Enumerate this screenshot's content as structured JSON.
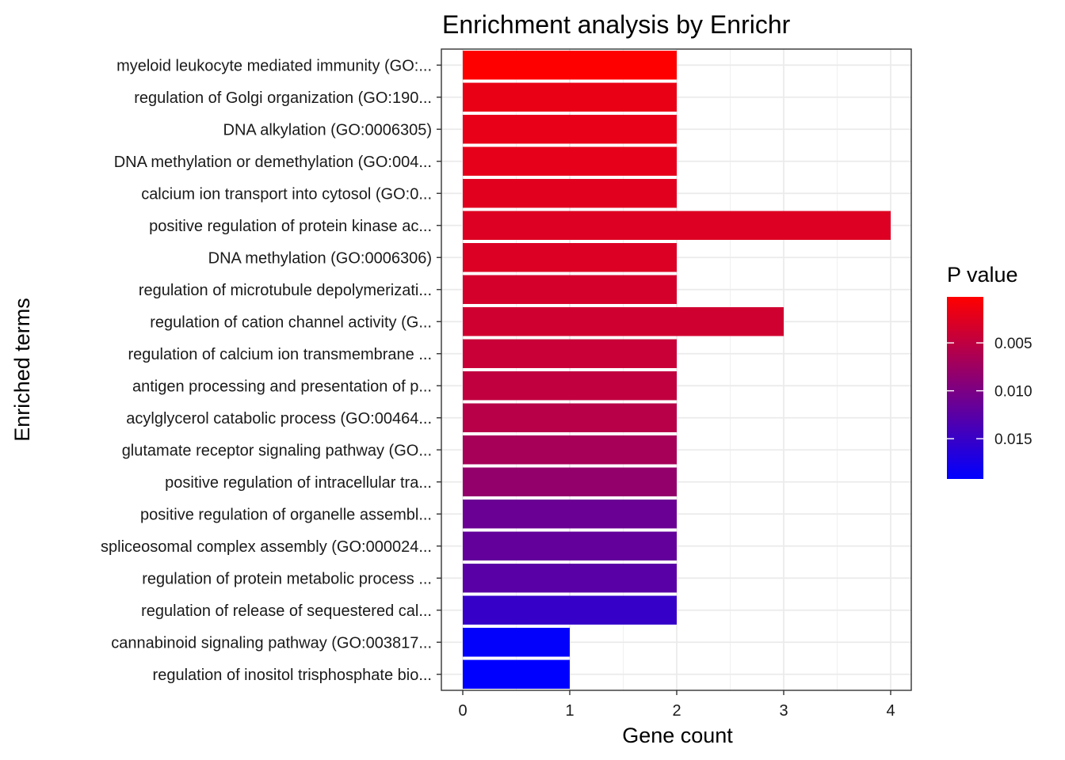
{
  "chart_data": {
    "type": "bar",
    "orientation": "horizontal",
    "title": "Enrichment analysis by Enrichr",
    "xlabel": "Gene count",
    "ylabel": "Enriched terms",
    "xlim": [
      0,
      4.2
    ],
    "xticks": [
      0,
      1,
      2,
      3,
      4
    ],
    "grid": true,
    "categories": [
      "myeloid leukocyte mediated immunity (GO:...",
      "regulation of Golgi organization (GO:190...",
      "DNA alkylation (GO:0006305)",
      "DNA methylation or demethylation (GO:004...",
      "calcium ion transport into cytosol (GO:0...",
      "positive regulation of protein kinase ac...",
      "DNA methylation (GO:0006306)",
      "regulation of microtubule depolymerizati...",
      "regulation of cation channel activity (G...",
      "regulation of calcium ion transmembrane ...",
      "antigen processing and presentation of p...",
      "acylglycerol catabolic process (GO:00464...",
      "glutamate receptor signaling pathway (GO...",
      "positive regulation of intracellular tra...",
      "positive regulation of organelle assembl...",
      "spliceosomal complex assembly (GO:000024...",
      "regulation of protein metabolic process ...",
      "regulation of release of sequestered cal...",
      "cannabinoid signaling pathway (GO:003817...",
      "regulation of inositol trisphosphate bio..."
    ],
    "values": [
      2,
      2,
      2,
      2,
      2,
      4,
      2,
      2,
      3,
      2,
      2,
      2,
      2,
      2,
      2,
      2,
      2,
      2,
      1,
      1
    ],
    "p_values": [
      0.0002,
      0.0018,
      0.002,
      0.0021,
      0.0024,
      0.0027,
      0.0029,
      0.0034,
      0.0038,
      0.0043,
      0.0049,
      0.0056,
      0.0068,
      0.0082,
      0.0112,
      0.0118,
      0.0126,
      0.0152,
      0.019,
      0.0192
    ],
    "color_scale": {
      "title": "P value",
      "low_color": "#ff0000",
      "high_color": "#0000ff",
      "domain": [
        0.0002,
        0.0192
      ],
      "breaks": [
        0.005,
        0.01,
        0.015
      ],
      "break_labels": [
        "0.005",
        "0.010",
        "0.015"
      ],
      "legend_placement": "right"
    }
  }
}
